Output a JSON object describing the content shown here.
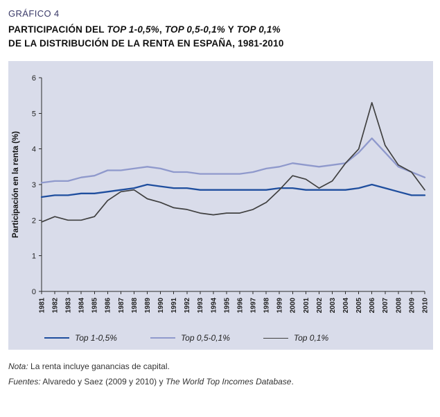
{
  "header": {
    "kicker": "GRÁFICO 4",
    "title_lines": [
      [
        {
          "text": "PARTICIPACIÓN DEL ",
          "italic": false
        },
        {
          "text": "TOP 1-0,5%",
          "italic": true
        },
        {
          "text": ", ",
          "italic": false
        },
        {
          "text": "TOP 0,5-0,1%",
          "italic": true
        },
        {
          "text": " Y ",
          "italic": false
        },
        {
          "text": "TOP 0,1%",
          "italic": true
        }
      ],
      [
        {
          "text": "DE LA DISTRIBUCIÓN DE LA RENTA EN ESPAÑA, 1981-2010",
          "italic": false
        }
      ]
    ]
  },
  "chart_data": {
    "type": "line",
    "title": "Participación del Top 1-0,5%, Top 0,5-0,1% y Top 0,1% de la distribución de la renta en España, 1981-2010",
    "xlabel": "",
    "ylabel": "Participación en la renta (%)",
    "ylim": [
      0,
      6
    ],
    "yticks": [
      0,
      1,
      2,
      3,
      4,
      5,
      6
    ],
    "grid": false,
    "legend_position": "bottom",
    "plot_bg": "#d9dcea",
    "x": [
      1981,
      1982,
      1983,
      1984,
      1985,
      1986,
      1987,
      1988,
      1989,
      1990,
      1991,
      1992,
      1993,
      1994,
      1995,
      1996,
      1997,
      1998,
      1999,
      2000,
      2001,
      2002,
      2003,
      2004,
      2005,
      2006,
      2007,
      2008,
      2009,
      2010
    ],
    "series": [
      {
        "name": "Top 1-0,5%",
        "color": "#1f4e9e",
        "values": [
          2.65,
          2.7,
          2.7,
          2.75,
          2.75,
          2.8,
          2.85,
          2.9,
          3.0,
          2.95,
          2.9,
          2.9,
          2.85,
          2.85,
          2.85,
          2.85,
          2.85,
          2.85,
          2.9,
          2.9,
          2.85,
          2.85,
          2.85,
          2.85,
          2.9,
          3.0,
          2.9,
          2.8,
          2.7,
          2.7
        ]
      },
      {
        "name": "Top 0,5-0,1%",
        "color": "#8f99cc",
        "values": [
          3.05,
          3.1,
          3.1,
          3.2,
          3.25,
          3.4,
          3.4,
          3.45,
          3.5,
          3.45,
          3.35,
          3.35,
          3.3,
          3.3,
          3.3,
          3.3,
          3.35,
          3.45,
          3.5,
          3.6,
          3.55,
          3.5,
          3.55,
          3.6,
          3.9,
          4.3,
          3.9,
          3.5,
          3.35,
          3.2
        ]
      },
      {
        "name": "Top 0,1%",
        "color": "#404040",
        "values": [
          1.95,
          2.1,
          2.0,
          2.0,
          2.1,
          2.55,
          2.8,
          2.85,
          2.6,
          2.5,
          2.35,
          2.3,
          2.2,
          2.15,
          2.2,
          2.2,
          2.3,
          2.5,
          2.85,
          3.25,
          3.15,
          2.9,
          3.1,
          3.6,
          4.0,
          5.3,
          4.1,
          3.55,
          3.35,
          2.85
        ]
      }
    ]
  },
  "notes": {
    "nota_segments": [
      {
        "text": "Nota:",
        "italic": true
      },
      {
        "text": " La renta incluye ganancias de capital.",
        "italic": false
      }
    ],
    "fuentes_segments": [
      {
        "text": "Fuentes:",
        "italic": true
      },
      {
        "text": " Alvaredo y Saez (2009 y 2010) y ",
        "italic": false
      },
      {
        "text": "The World Top Incomes Database",
        "italic": true
      },
      {
        "text": ".",
        "italic": false
      }
    ]
  }
}
